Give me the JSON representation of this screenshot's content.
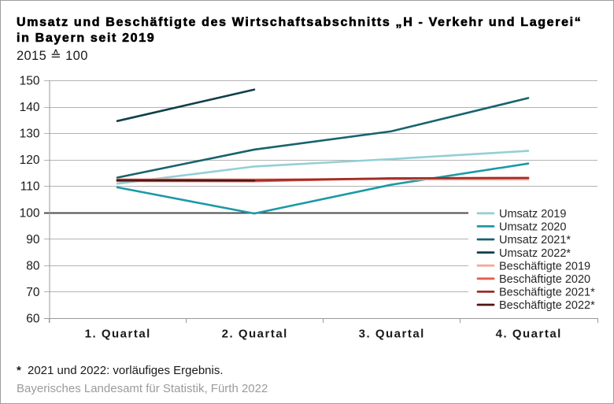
{
  "header": {
    "title_lines": [
      "Umsatz und Beschäftigte des Wirtschaftsabschnitts „H - Verkehr und Lagerei“",
      "in Bayern seit 2019"
    ],
    "subtitle": "2015 ≙ 100"
  },
  "footnote": {
    "marker": "*",
    "text": "2021 und 2022: vorläufiges Ergebnis."
  },
  "source": "Bayerisches Landesamt für Statistik, Fürth 2022",
  "chart_data": {
    "type": "line",
    "title": "Umsatz und Beschäftigte des Wirtschaftsabschnitts „H - Verkehr und Lagerei“ in Bayern seit 2019",
    "subtitle": "2015 ≙ 100",
    "categories": [
      "1. Quartal",
      "2. Quartal",
      "3. Quartal",
      "4. Quartal"
    ],
    "ylim": [
      60,
      150
    ],
    "yticks": [
      60,
      70,
      80,
      90,
      100,
      110,
      120,
      130,
      140,
      150
    ],
    "reference_line": 100,
    "grid": true,
    "legend_position": "right-inside",
    "colors": {
      "grid": "#b3b3b3",
      "axis": "#9a9a9a",
      "reference_line": "#4d4d4d",
      "tick_label": "#1a1a1a",
      "legend_text": "#262626"
    },
    "series": [
      {
        "name": "Umsatz 2019",
        "color": "#93cfd6",
        "values": [
          110.9,
          117.4,
          120.2,
          123.3
        ]
      },
      {
        "name": "Umsatz 2020",
        "color": "#1b9aa5",
        "values": [
          109.5,
          99.6,
          110.5,
          118.5
        ]
      },
      {
        "name": "Umsatz 2021*",
        "color": "#17636e",
        "values": [
          113.2,
          123.8,
          130.7,
          143.3
        ]
      },
      {
        "name": "Umsatz 2022*",
        "color": "#0f3f4a",
        "values": [
          134.6,
          146.5,
          null,
          null
        ]
      },
      {
        "name": "Beschäftigte 2019",
        "color": "#f5a99d",
        "values": [
          112.55,
          112.5,
          112.55,
          112.5
        ]
      },
      {
        "name": "Beschäftigte 2020",
        "color": "#e85c50",
        "values": [
          111.9,
          111.8,
          112.95,
          113.1
        ]
      },
      {
        "name": "Beschäftigte 2021*",
        "color": "#a02c24",
        "values": [
          112.3,
          112.2,
          112.9,
          113.05
        ]
      },
      {
        "name": "Beschäftigte 2022*",
        "color": "#4f1612",
        "values": [
          112.15,
          112.1,
          null,
          null
        ]
      }
    ]
  }
}
